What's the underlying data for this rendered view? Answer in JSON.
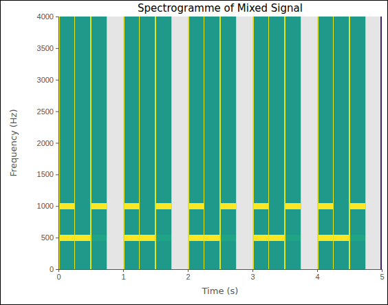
{
  "chart_data": {
    "type": "heatmap",
    "title": "Spectrogramme of Mixed Signal",
    "x_label": "Time (s)",
    "y_label": "Frequency (Hz)",
    "color": "viridis",
    "zlim": [
      -120,
      0
    ],
    "xlim": [
      0,
      5
    ],
    "ylim": [
      0,
      4000
    ],
    "xticks": [
      0,
      1,
      2,
      3,
      4,
      5
    ],
    "yticks": [
      0,
      500,
      1000,
      1500,
      2000,
      2500,
      3000,
      3500,
      4000
    ],
    "x_edges": [
      0,
      0.02,
      0.24,
      0.26,
      0.49,
      0.51,
      0.74,
      0.76,
      1,
      1.02,
      1.24,
      1.26,
      1.49,
      1.51,
      1.74,
      1.76,
      2,
      2.02,
      2.24,
      2.26,
      2.49,
      2.51,
      2.74,
      2.76,
      3,
      3.02,
      3.24,
      3.26,
      3.49,
      3.51,
      3.74,
      3.76,
      4,
      4.02,
      4.24,
      4.26,
      4.49,
      4.51,
      4.74,
      4.76,
      4.98,
      5
    ],
    "y_edges": [
      0,
      450,
      550,
      950,
      1050,
      4000
    ],
    "cells": [
      [
        -5,
        -55,
        -5,
        -55,
        -5,
        -55,
        -5,
        null,
        -5,
        -55,
        -5,
        -55,
        -5,
        -55,
        -5,
        null,
        -5,
        -55,
        -5,
        -55,
        -5,
        -55,
        -5,
        null,
        -5,
        -55,
        -5,
        -55,
        -5,
        -55,
        -5,
        null,
        -5,
        -55,
        -5,
        -55,
        -5,
        -55,
        -5,
        null,
        -110
      ],
      [
        -5,
        0,
        -5,
        0,
        -5,
        -50,
        -5,
        null,
        -5,
        0,
        -5,
        0,
        -5,
        -50,
        -5,
        null,
        -5,
        0,
        -5,
        0,
        -5,
        -50,
        -5,
        null,
        -5,
        0,
        -5,
        0,
        -5,
        -50,
        -5,
        null,
        -5,
        0,
        -5,
        0,
        -5,
        -50,
        -5,
        null,
        -110
      ],
      [
        -5,
        -55,
        -5,
        -55,
        -5,
        -55,
        -5,
        null,
        -5,
        -55,
        -5,
        -55,
        -5,
        -55,
        -5,
        null,
        -5,
        -55,
        -5,
        -55,
        -5,
        -55,
        -5,
        null,
        -5,
        -55,
        -5,
        -55,
        -5,
        -55,
        -5,
        null,
        -5,
        -55,
        -5,
        -55,
        -5,
        -55,
        -5,
        null,
        -110
      ],
      [
        -5,
        0,
        -5,
        -55,
        -5,
        0,
        -5,
        null,
        -5,
        0,
        -5,
        -55,
        -5,
        0,
        -5,
        null,
        -5,
        0,
        -5,
        -55,
        -5,
        0,
        -5,
        null,
        -5,
        0,
        -5,
        -55,
        -5,
        0,
        -5,
        null,
        -5,
        0,
        -5,
        -55,
        -5,
        0,
        -5,
        null,
        -110
      ],
      [
        -5,
        -55,
        -5,
        -55,
        -5,
        -55,
        -5,
        null,
        -5,
        -55,
        -5,
        -55,
        -5,
        -55,
        -5,
        null,
        -5,
        -55,
        -5,
        -55,
        -5,
        -55,
        -5,
        null,
        -5,
        -55,
        -5,
        -55,
        -5,
        -55,
        -5,
        null,
        -5,
        -55,
        -5,
        -55,
        -5,
        -55,
        -5,
        null,
        -110
      ]
    ]
  }
}
